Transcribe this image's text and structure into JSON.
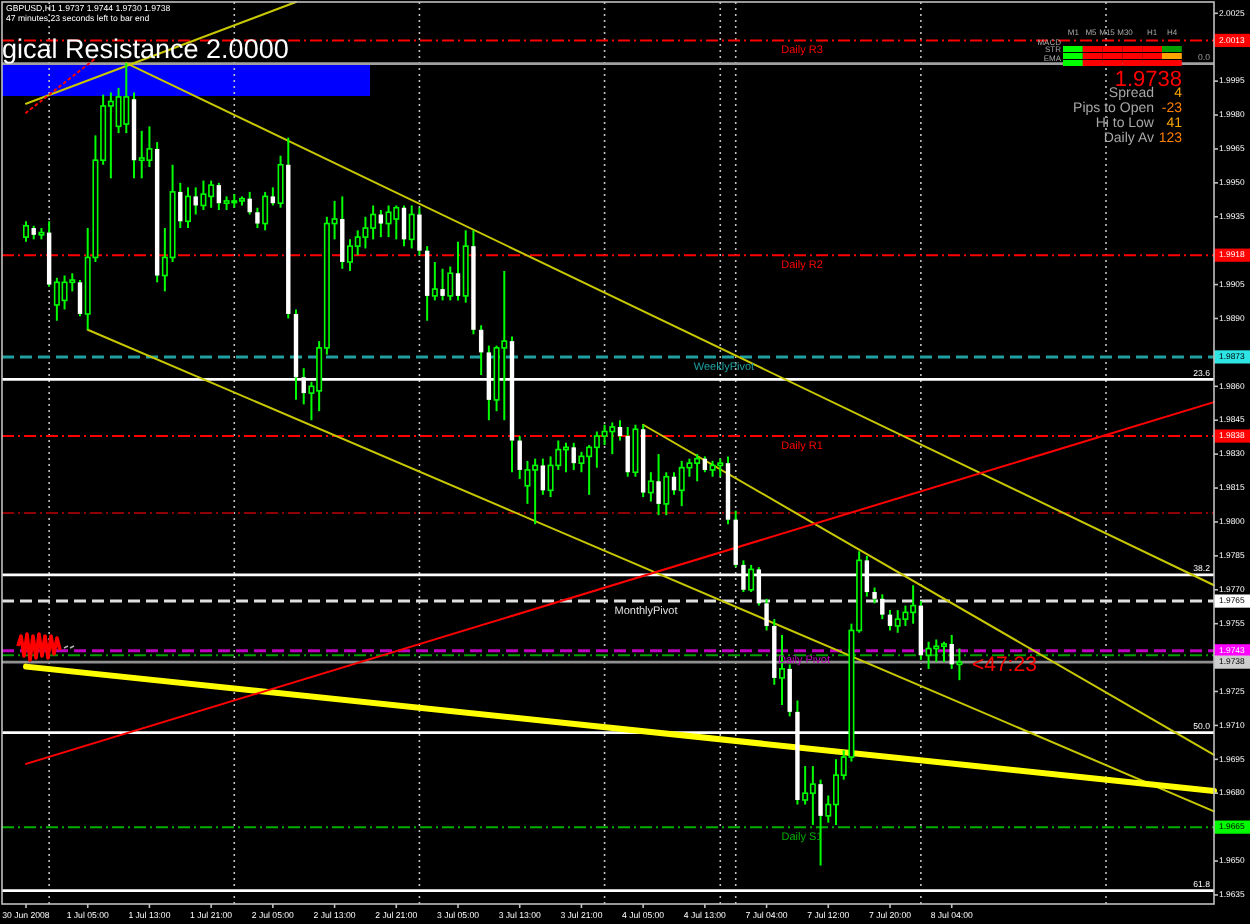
{
  "chart_data": {
    "type": "candlestick",
    "title": "GBPUSD,H1 1.9737 1.9744 1.9730 1.9738",
    "subtitle": "47 minutes 23 seconds left to bar end",
    "color": "#00ff00",
    "categories": [
      "30 Jun 2008",
      null,
      null,
      null,
      null,
      null,
      null,
      null,
      "1 Jul 05:00",
      null,
      null,
      null,
      null,
      null,
      null,
      null,
      "1 Jul 13:00",
      null,
      null,
      null,
      null,
      null,
      null,
      null,
      "1 Jul 21:00",
      null,
      null,
      null,
      null,
      null,
      null,
      null,
      "2 Jul 05:00",
      null,
      null,
      null,
      null,
      null,
      null,
      null,
      "2 Jul 13:00",
      null,
      null,
      null,
      null,
      null,
      null,
      null,
      "2 Jul 21:00",
      null,
      null,
      null,
      null,
      null,
      null,
      null,
      "3 Jul 05:00",
      null,
      null,
      null,
      null,
      null,
      null,
      null,
      "3 Jul 13:00",
      null,
      null,
      null,
      null,
      null,
      null,
      null,
      "3 Jul 21:00",
      null,
      null,
      null,
      null,
      null,
      null,
      null,
      "4 Jul 05:00",
      null,
      null,
      null,
      null,
      null,
      null,
      null,
      "4 Jul 13:00",
      null,
      null,
      null,
      null,
      null,
      null,
      null,
      "7 Jul 04:00",
      null,
      null,
      null,
      null,
      null,
      null,
      null,
      "7 Jul 12:00",
      null,
      null,
      null,
      null,
      null,
      null,
      null,
      "7 Jul 20:00",
      null,
      null,
      null,
      null,
      null,
      null,
      null,
      "8 Jul 04:00",
      null,
      null,
      null,
      null,
      null,
      null,
      null,
      null,
      null,
      null,
      null,
      null,
      null,
      null,
      null,
      null,
      null,
      null,
      null,
      null,
      null,
      null,
      null,
      null,
      null,
      null,
      null,
      null,
      null,
      null,
      null,
      null,
      null,
      null
    ],
    "ohlc": [
      [
        1.9926,
        1.9933,
        1.9924,
        1.9931
      ],
      [
        1.993,
        1.9931,
        1.9925,
        1.9927
      ],
      [
        1.9927,
        1.993,
        1.9925,
        1.9928
      ],
      [
        1.9928,
        1.9933,
        1.9904,
        1.9905
      ],
      [
        1.9896,
        1.9908,
        1.9889,
        1.9906
      ],
      [
        1.9898,
        1.9909,
        1.9894,
        1.9906
      ],
      [
        1.9906,
        1.991,
        1.9902,
        1.9907
      ],
      [
        1.9906,
        1.9907,
        1.9891,
        1.9892
      ],
      [
        1.9892,
        1.993,
        1.9885,
        1.9917
      ],
      [
        1.9917,
        1.9971,
        1.9915,
        1.996
      ],
      [
        1.996,
        1.9989,
        1.9958,
        1.9984
      ],
      [
        1.9984,
        1.999,
        1.9952,
        1.9986
      ],
      [
        1.9975,
        1.9992,
        1.9972,
        1.9988
      ],
      [
        1.9976,
        2.0003,
        1.9972,
        1.9988
      ],
      [
        1.9987,
        1.999,
        1.9952,
        1.996
      ],
      [
        1.996,
        1.9973,
        1.9952,
        1.9961
      ],
      [
        1.996,
        1.9975,
        1.9957,
        1.9965
      ],
      [
        1.9965,
        1.9968,
        1.9906,
        1.9909
      ],
      [
        1.9909,
        1.993,
        1.9902,
        1.9917
      ],
      [
        1.9917,
        1.9958,
        1.9915,
        1.9946
      ],
      [
        1.9946,
        1.995,
        1.993,
        1.9933
      ],
      [
        1.9933,
        1.9948,
        1.993,
        1.9944
      ],
      [
        1.9944,
        1.9948,
        1.9936,
        1.994
      ],
      [
        1.994,
        1.9951,
        1.9938,
        1.9945
      ],
      [
        1.9944,
        1.9951,
        1.9939,
        1.9949
      ],
      [
        1.9949,
        1.995,
        1.9938,
        1.9941
      ],
      [
        1.9941,
        1.9944,
        1.9938,
        1.9942
      ],
      [
        1.9942,
        1.9945,
        1.9939,
        1.9942
      ],
      [
        1.9942,
        1.9944,
        1.994,
        1.9943
      ],
      [
        1.9943,
        1.9946,
        1.9936,
        1.9937
      ],
      [
        1.9937,
        1.9939,
        1.993,
        1.9932
      ],
      [
        1.9932,
        1.9946,
        1.9929,
        1.9944
      ],
      [
        1.9944,
        1.9948,
        1.994,
        1.9941
      ],
      [
        1.9941,
        1.9962,
        1.9939,
        1.9958
      ],
      [
        1.9958,
        1.997,
        1.989,
        1.9892
      ],
      [
        1.9892,
        1.9894,
        1.9854,
        1.9864
      ],
      [
        1.9864,
        1.9868,
        1.9852,
        1.9857
      ],
      [
        1.9857,
        1.9862,
        1.9845,
        1.986
      ],
      [
        1.9858,
        1.988,
        1.9849,
        1.9877
      ],
      [
        1.9877,
        1.9935,
        1.9874,
        1.9932
      ],
      [
        1.9932,
        1.9942,
        1.9925,
        1.9934
      ],
      [
        1.9934,
        1.9944,
        1.9912,
        1.9915
      ],
      [
        1.9915,
        1.9925,
        1.9911,
        1.9922
      ],
      [
        1.9922,
        1.9929,
        1.9918,
        1.9926
      ],
      [
        1.9926,
        1.9935,
        1.9921,
        1.993
      ],
      [
        1.993,
        1.994,
        1.9925,
        1.9936
      ],
      [
        1.9936,
        1.9938,
        1.9926,
        1.9932
      ],
      [
        1.9932,
        1.994,
        1.9926,
        1.9937
      ],
      [
        1.9934,
        1.994,
        1.9925,
        1.9939
      ],
      [
        1.9939,
        1.994,
        1.9922,
        1.9925
      ],
      [
        1.9925,
        1.994,
        1.9921,
        1.9936
      ],
      [
        1.9936,
        1.9939,
        1.9918,
        1.992
      ],
      [
        1.992,
        1.9922,
        1.9889,
        1.99
      ],
      [
        1.99,
        1.9915,
        1.9898,
        1.9903
      ],
      [
        1.9903,
        1.9912,
        1.9898,
        1.99
      ],
      [
        1.99,
        1.9913,
        1.9898,
        1.991
      ],
      [
        1.991,
        1.9924,
        1.9898,
        1.99
      ],
      [
        1.99,
        1.9929,
        1.9897,
        1.9922
      ],
      [
        1.9922,
        1.9929,
        1.9883,
        1.9885
      ],
      [
        1.9885,
        1.9887,
        1.9865,
        1.9875
      ],
      [
        1.9875,
        1.9878,
        1.9845,
        1.9854
      ],
      [
        1.9854,
        1.9878,
        1.9849,
        1.9877
      ],
      [
        1.9877,
        1.9911,
        1.9845,
        1.988
      ],
      [
        1.988,
        1.9882,
        1.9822,
        1.9836
      ],
      [
        1.9836,
        1.9838,
        1.9819,
        1.9823
      ],
      [
        1.9816,
        1.9827,
        1.9808,
        1.9823
      ],
      [
        1.9823,
        1.9828,
        1.9799,
        1.9825
      ],
      [
        1.9825,
        1.9828,
        1.9812,
        1.9814
      ],
      [
        1.9814,
        1.9829,
        1.9811,
        1.9825
      ],
      [
        1.9825,
        1.9836,
        1.9823,
        1.9832
      ],
      [
        1.9832,
        1.9835,
        1.9822,
        1.9833
      ],
      [
        1.9833,
        1.9835,
        1.9823,
        1.9826
      ],
      [
        1.9826,
        1.9831,
        1.9822,
        1.9829
      ],
      [
        1.9829,
        1.9834,
        1.9812,
        1.9833
      ],
      [
        1.9833,
        1.984,
        1.9824,
        1.9838
      ],
      [
        1.9838,
        1.9843,
        1.9834,
        1.984
      ],
      [
        1.984,
        1.9844,
        1.983,
        1.9842
      ],
      [
        1.9842,
        1.9845,
        1.9836,
        1.9838
      ],
      [
        1.9838,
        1.9842,
        1.982,
        1.9822
      ],
      [
        1.9822,
        1.9843,
        1.982,
        1.9841
      ],
      [
        1.9841,
        1.9843,
        1.9811,
        1.9813
      ],
      [
        1.9813,
        1.9822,
        1.9809,
        1.9818
      ],
      [
        1.9818,
        1.983,
        1.9803,
        1.9808
      ],
      [
        1.9808,
        1.9822,
        1.9803,
        1.982
      ],
      [
        1.982,
        1.9822,
        1.9812,
        1.9814
      ],
      [
        1.9814,
        1.9827,
        1.9807,
        1.9824
      ],
      [
        1.9824,
        1.9828,
        1.982,
        1.9826
      ],
      [
        1.9826,
        1.983,
        1.9818,
        1.9828
      ],
      [
        1.9828,
        1.9829,
        1.9822,
        1.9823
      ],
      [
        1.9823,
        1.9827,
        1.982,
        1.9825
      ],
      [
        1.9825,
        1.9828,
        1.982,
        1.9826
      ],
      [
        1.9826,
        1.9829,
        1.9799,
        1.9801
      ],
      [
        1.9801,
        1.9805,
        1.978,
        1.9781
      ],
      [
        1.9781,
        1.9783,
        1.9769,
        1.977
      ],
      [
        1.977,
        1.9781,
        1.9769,
        1.9779
      ],
      [
        1.9779,
        1.978,
        1.9763,
        1.9764
      ],
      [
        1.9764,
        1.9766,
        1.9752,
        1.9754
      ],
      [
        1.9754,
        1.9757,
        1.9728,
        1.9731
      ],
      [
        1.9731,
        1.975,
        1.9719,
        1.9735
      ],
      [
        1.9735,
        1.9737,
        1.9714,
        1.9716
      ],
      [
        1.9716,
        1.9721,
        1.9675,
        1.9677
      ],
      [
        1.9677,
        1.9692,
        1.9675,
        1.968
      ],
      [
        1.968,
        1.9692,
        1.9666,
        1.9684
      ],
      [
        1.9684,
        1.9686,
        1.9648,
        1.967
      ],
      [
        1.967,
        1.9679,
        1.9667,
        1.9675
      ],
      [
        1.9675,
        1.9695,
        1.9666,
        1.9688
      ],
      [
        1.9688,
        1.9699,
        1.9686,
        1.9696
      ],
      [
        1.9696,
        1.9755,
        1.9694,
        1.9752
      ],
      [
        1.9752,
        1.9787,
        1.9751,
        1.9783
      ],
      [
        1.9783,
        1.9785,
        1.9767,
        1.9769
      ],
      [
        1.9769,
        1.9771,
        1.9764,
        1.9766
      ],
      [
        1.9766,
        1.9768,
        1.9757,
        1.9759
      ],
      [
        1.9759,
        1.9761,
        1.9752,
        1.9754
      ],
      [
        1.9754,
        1.9761,
        1.9751,
        1.9757
      ],
      [
        1.9757,
        1.9763,
        1.9754,
        1.976
      ],
      [
        1.976,
        1.9772,
        1.9755,
        1.9763
      ],
      [
        1.9763,
        1.9765,
        1.9739,
        1.9741
      ],
      [
        1.9741,
        1.9747,
        1.9735,
        1.9744
      ],
      [
        1.9744,
        1.9748,
        1.9738,
        1.9745
      ],
      [
        1.9745,
        1.9747,
        1.9738,
        1.9746
      ],
      [
        1.9746,
        1.975,
        1.9735,
        1.9737
      ],
      [
        1.9737,
        1.9744,
        1.973,
        1.9738
      ],
      null,
      null,
      null,
      null,
      null,
      null,
      null,
      null,
      null,
      null,
      null,
      null,
      null,
      null,
      null,
      null,
      null,
      null,
      null,
      null,
      null,
      null,
      null,
      null,
      null,
      null,
      null,
      null,
      null,
      null,
      null,
      null,
      null
    ],
    "colors": [
      "#00ff00",
      "#ffffff",
      "#00ff00",
      "#ffffff",
      "#00ff00",
      "#00ff00",
      "#00ff00",
      "#ffffff",
      "#00ff00",
      "#00ff00",
      "#00ff00",
      "#00ff00",
      "#00ff00",
      "#00ff00",
      "#ffffff",
      "#00ff00",
      "#00ff00",
      "#ffffff",
      "#00ff00",
      "#00ff00",
      "#ffffff",
      "#00ff00",
      "#ffffff",
      "#00ff00",
      "#00ff00",
      "#ffffff",
      "#00ff00",
      "#00ff00",
      "#00ff00",
      "#ffffff",
      "#ffffff",
      "#00ff00",
      "#ffffff",
      "#00ff00",
      "#ffffff",
      "#ffffff",
      "#ffffff",
      "#00ff00",
      "#00ff00",
      "#00ff00",
      "#00ff00",
      "#ffffff",
      "#00ff00",
      "#00ff00",
      "#00ff00",
      "#00ff00",
      "#ffffff",
      "#00ff00",
      "#00ff00",
      "#ffffff",
      "#00ff00",
      "#ffffff",
      "#ffffff",
      "#00ff00",
      "#ffffff",
      "#00ff00",
      "#ffffff",
      "#00ff00",
      "#ffffff",
      "#ffffff",
      "#ffffff",
      "#00ff00",
      "#00ff00",
      "#ffffff",
      "#ffffff",
      "#00ff00",
      "#00ff00",
      "#ffffff",
      "#00ff00",
      "#00ff00",
      "#00ff00",
      "#ffffff",
      "#00ff00",
      "#00ff00",
      "#00ff00",
      "#00ff00",
      "#00ff00",
      "#ffffff",
      "#ffffff",
      "#00ff00",
      "#ffffff",
      "#00ff00",
      "#ffffff",
      "#00ff00",
      "#ffffff",
      "#00ff00",
      "#00ff00",
      "#00ff00",
      "#ffffff",
      "#00ff00",
      "#00ff00",
      "#ffffff",
      "#ffffff",
      "#ffffff",
      "#00ff00",
      "#ffffff",
      "#ffffff",
      "#ffffff",
      "#00ff00",
      "#ffffff",
      "#ffffff",
      "#00ff00",
      "#00ff00",
      "#ffffff",
      "#00ff00",
      "#00ff00",
      "#00ff00",
      "#00ff00",
      "#00ff00",
      "#ffffff",
      "#ffffff",
      "#ffffff",
      "#ffffff",
      "#00ff00",
      "#00ff00",
      "#00ff00",
      "#ffffff",
      "#00ff00",
      "#00ff00",
      "#00ff00",
      "#ffffff",
      "#00ff00",
      null,
      null,
      null,
      null,
      null,
      null,
      null,
      null,
      null,
      null,
      null,
      null,
      null,
      null,
      null,
      null,
      null,
      null,
      null,
      null,
      null,
      null,
      null,
      null,
      null,
      null,
      null,
      null,
      null,
      null,
      null,
      null,
      null
    ],
    "series": [
      {
        "type": "line",
        "color": "#c8c800",
        "values": [
          null,
          null,
          null,
          null,
          null,
          null,
          null,
          null,
          null,
          null,
          null,
          null,
          null,
          2.0003,
          null,
          null,
          null,
          null,
          null,
          null,
          null,
          null,
          null,
          null,
          null,
          null,
          null,
          null,
          null,
          null,
          null,
          null,
          null,
          null,
          null,
          null,
          null,
          null,
          null,
          null,
          null,
          null,
          null,
          null,
          null,
          null,
          null,
          null,
          null,
          null,
          null,
          null,
          null,
          null,
          null,
          null,
          null,
          null,
          null,
          null,
          null,
          null,
          null,
          null,
          null,
          null,
          null,
          null,
          null,
          null,
          null,
          null,
          null,
          null,
          null,
          null,
          null,
          null,
          null,
          null,
          null,
          null,
          null,
          null,
          null,
          null,
          null,
          null,
          null,
          null,
          null,
          null,
          null,
          null,
          null,
          null,
          null,
          null,
          null,
          null,
          null,
          null,
          null,
          null,
          null,
          null,
          null,
          null,
          null,
          null,
          null,
          null,
          null,
          null,
          null,
          null,
          null,
          null,
          null,
          null,
          null,
          null,
          null,
          null,
          null,
          null,
          null,
          null,
          null,
          null,
          null,
          null,
          null,
          null,
          null,
          null,
          null,
          null,
          null,
          null,
          null,
          null,
          null,
          null,
          null,
          null,
          null,
          null,
          null,
          null,
          null,
          null,
          null,
          null,
          1.9772
        ]
      },
      {
        "type": "line",
        "color": "#c8c800",
        "values": [
          null,
          null,
          null,
          null,
          null,
          null,
          null,
          null,
          1.9885,
          null,
          null,
          null,
          null,
          null,
          null,
          null,
          null,
          null,
          null,
          null,
          null,
          null,
          null,
          null,
          null,
          null,
          null,
          null,
          null,
          null,
          null,
          null,
          null,
          null,
          null,
          null,
          null,
          null,
          null,
          null,
          null,
          null,
          null,
          null,
          null,
          null,
          null,
          null,
          null,
          null,
          null,
          null,
          null,
          null,
          null,
          null,
          null,
          null,
          null,
          null,
          null,
          null,
          null,
          null,
          null,
          null,
          null,
          null,
          null,
          null,
          null,
          null,
          null,
          null,
          null,
          null,
          null,
          null,
          null,
          null,
          null,
          null,
          null,
          null,
          null,
          null,
          null,
          null,
          null,
          null,
          null,
          null,
          null,
          null,
          null,
          null,
          null,
          null,
          null,
          null,
          null,
          null,
          null,
          null,
          null,
          null,
          null,
          null,
          null,
          null,
          null,
          null,
          null,
          null,
          null,
          null,
          null,
          null,
          null,
          null,
          null,
          null,
          null,
          null,
          null,
          null,
          null,
          null,
          null,
          null,
          null,
          null,
          null,
          null,
          null,
          null,
          null,
          null,
          null,
          null,
          null,
          null,
          null,
          null,
          null,
          null,
          null,
          null,
          null,
          null,
          null,
          null,
          null,
          null,
          1.9672
        ]
      },
      {
        "type": "line",
        "color": "#c8c800",
        "values": [
          null,
          null,
          null,
          null,
          null,
          null,
          null,
          null,
          null,
          null,
          null,
          null,
          null,
          null,
          null,
          null,
          null,
          null,
          null,
          null,
          null,
          null,
          null,
          null,
          null,
          null,
          null,
          null,
          null,
          null,
          null,
          null,
          null,
          null,
          null,
          null,
          null,
          null,
          null,
          null,
          null,
          null,
          null,
          null,
          null,
          null,
          null,
          null,
          null,
          null,
          null,
          null,
          null,
          null,
          null,
          null,
          null,
          null,
          null,
          null,
          null,
          null,
          null,
          null,
          null,
          null,
          null,
          null,
          null,
          null,
          null,
          null,
          null,
          null,
          null,
          null,
          null,
          null,
          null,
          null,
          1.9843,
          null,
          null,
          null,
          null,
          null,
          null,
          null,
          null,
          null,
          null,
          null,
          null,
          null,
          null,
          null,
          null,
          null,
          null,
          null,
          null,
          null,
          null,
          null,
          null,
          null,
          null,
          null,
          null,
          null,
          null,
          null,
          null,
          null,
          null,
          null,
          null,
          null,
          null,
          null,
          null,
          null,
          null,
          null,
          null,
          null,
          null,
          null,
          null,
          null,
          null,
          null,
          null,
          null,
          null,
          null,
          null,
          null,
          null,
          null,
          null,
          null,
          null,
          null,
          null,
          null,
          null,
          null,
          null,
          null,
          null,
          null,
          null,
          null,
          1.9697
        ]
      },
      {
        "type": "line",
        "color": "#ffff00",
        "values": [
          1.9736,
          null,
          null,
          null,
          null,
          null,
          null,
          null,
          null,
          null,
          null,
          null,
          null,
          null,
          null,
          null,
          null,
          null,
          null,
          null,
          null,
          null,
          null,
          null,
          null,
          null,
          null,
          null,
          null,
          null,
          null,
          null,
          null,
          null,
          null,
          null,
          null,
          null,
          null,
          null,
          null,
          null,
          null,
          null,
          null,
          null,
          null,
          null,
          null,
          null,
          null,
          null,
          null,
          null,
          null,
          null,
          null,
          null,
          null,
          null,
          null,
          null,
          null,
          null,
          null,
          null,
          null,
          null,
          null,
          null,
          null,
          null,
          null,
          null,
          null,
          null,
          null,
          null,
          null,
          null,
          null,
          null,
          null,
          null,
          null,
          null,
          null,
          null,
          null,
          null,
          null,
          null,
          null,
          null,
          null,
          null,
          null,
          null,
          null,
          null,
          null,
          null,
          null,
          null,
          null,
          null,
          null,
          null,
          null,
          null,
          null,
          null,
          null,
          null,
          null,
          null,
          null,
          null,
          null,
          null,
          null,
          null,
          null,
          null,
          null,
          null,
          null,
          null,
          null,
          null,
          null,
          null,
          null,
          null,
          null,
          null,
          null,
          null,
          null,
          null,
          null,
          null,
          null,
          null,
          null,
          null,
          null,
          null,
          null,
          null,
          null,
          null,
          null,
          null,
          1.9681
        ]
      },
      {
        "type": "line",
        "color": "#ff0000",
        "values": [
          1.9693,
          null,
          null,
          null,
          null,
          null,
          null,
          null,
          null,
          null,
          null,
          null,
          null,
          null,
          null,
          null,
          null,
          null,
          null,
          null,
          null,
          null,
          null,
          null,
          null,
          null,
          null,
          null,
          null,
          null,
          null,
          null,
          null,
          null,
          null,
          null,
          null,
          null,
          null,
          null,
          null,
          null,
          null,
          null,
          null,
          null,
          null,
          null,
          null,
          null,
          null,
          null,
          null,
          null,
          null,
          null,
          null,
          null,
          null,
          null,
          null,
          null,
          null,
          null,
          null,
          null,
          null,
          null,
          null,
          null,
          null,
          null,
          null,
          null,
          null,
          null,
          null,
          null,
          null,
          null,
          null,
          null,
          null,
          null,
          null,
          null,
          null,
          null,
          null,
          null,
          null,
          null,
          null,
          null,
          null,
          null,
          null,
          null,
          null,
          null,
          null,
          null,
          null,
          null,
          null,
          null,
          null,
          null,
          null,
          null,
          null,
          null,
          null,
          null,
          null,
          null,
          null,
          null,
          null,
          null,
          null,
          null,
          null,
          null,
          null,
          null,
          null,
          null,
          null,
          null,
          null,
          null,
          null,
          null,
          null,
          null,
          null,
          null,
          null,
          null,
          null,
          null,
          null,
          null,
          null,
          null,
          null,
          null,
          null,
          null,
          null,
          null,
          null,
          null,
          1.9853
        ]
      },
      {
        "type": "line",
        "color": "#c8c800",
        "values": [
          1.9985,
          null,
          null,
          null,
          null,
          null,
          null,
          null,
          null,
          null,
          null,
          null,
          null,
          null,
          null,
          null,
          null,
          null,
          null,
          null,
          null,
          null,
          null,
          null,
          null,
          null,
          null,
          null,
          null,
          null,
          null,
          null,
          null,
          null,
          null,
          2.003,
          null,
          null,
          null,
          null,
          null,
          null,
          null,
          null,
          null,
          null,
          null,
          null,
          null,
          null,
          null,
          null,
          null,
          null,
          null,
          null,
          null,
          null,
          null,
          null,
          null,
          null,
          null,
          null,
          null,
          null,
          null,
          null,
          null,
          null,
          null,
          null,
          null,
          null,
          null,
          null,
          null,
          null,
          null,
          null,
          null,
          null,
          null,
          null,
          null,
          null,
          null,
          null,
          null,
          null,
          null,
          null,
          null,
          null,
          null,
          null,
          null,
          null,
          null,
          null,
          null,
          null,
          null,
          null,
          null,
          null,
          null,
          null,
          null,
          null,
          null,
          null,
          null,
          null,
          null,
          null,
          null,
          null,
          null,
          null,
          null,
          null,
          null,
          null,
          null,
          null,
          null,
          null,
          null,
          null,
          null,
          null,
          null,
          null,
          null,
          null,
          null,
          null,
          null,
          null,
          null,
          null,
          null,
          null,
          null,
          null,
          null,
          null,
          null,
          null,
          null,
          null,
          null,
          null,
          null
        ]
      },
      {
        "type": "line",
        "color": "#ff0000",
        "line_style": "dotted",
        "values": [
          1.9981,
          null,
          null,
          null,
          null,
          null,
          null,
          null,
          null,
          2.0005,
          null,
          null,
          null,
          null,
          null,
          null,
          null,
          null,
          null,
          null,
          null,
          null,
          null,
          null,
          null,
          null,
          null,
          null,
          null,
          null,
          null,
          null,
          null,
          null,
          null,
          null,
          null,
          null,
          null,
          null,
          null,
          null,
          null,
          null,
          null,
          null,
          null,
          null,
          null,
          null,
          null,
          null,
          null,
          null,
          null,
          null,
          null,
          null,
          null,
          null,
          null,
          null,
          null,
          null,
          null,
          null,
          null,
          null,
          null,
          null,
          null,
          null,
          null,
          null,
          null,
          null,
          null,
          null,
          null,
          null,
          null,
          null,
          null,
          null,
          null,
          null,
          null,
          null,
          null,
          null,
          null,
          null,
          null,
          null,
          null,
          null,
          null,
          null,
          null,
          null,
          null,
          null,
          null,
          null,
          null,
          null,
          null,
          null,
          null,
          null,
          null,
          null,
          null,
          null,
          null,
          null,
          null,
          null,
          null,
          null,
          null,
          null,
          null,
          null,
          null,
          null,
          null,
          null,
          null,
          null,
          null,
          null,
          null,
          null,
          null,
          null,
          null,
          null,
          null,
          null,
          null,
          null,
          null,
          null,
          null,
          null,
          null,
          null,
          null,
          null,
          null,
          null,
          null,
          null,
          null
        ]
      }
    ],
    "ylim": [
      1.9631,
      2.003
    ],
    "yticks": [
      {
        "value": 2.0025,
        "label": "2.0025"
      },
      {
        "value": 1.9995,
        "label": "1.9995"
      },
      {
        "value": 1.998,
        "label": "1.9980"
      },
      {
        "value": 1.9965,
        "label": "1.9965"
      },
      {
        "value": 1.995,
        "label": "1.9950"
      },
      {
        "value": 1.9935,
        "label": "1.9935"
      },
      {
        "value": 1.9905,
        "label": "1.9905"
      },
      {
        "value": 1.989,
        "label": "1.9890"
      },
      {
        "value": 1.986,
        "label": "1.9860"
      },
      {
        "value": 1.9845,
        "label": "1.9845"
      },
      {
        "value": 1.983,
        "label": "1.9830"
      },
      {
        "value": 1.9815,
        "label": "1.9815"
      },
      {
        "value": 1.98,
        "label": "1.9800"
      },
      {
        "value": 1.9785,
        "label": "1.9785"
      },
      {
        "value": 1.977,
        "label": "1.9770"
      },
      {
        "value": 1.9755,
        "label": "1.9755"
      },
      {
        "value": 1.9725,
        "label": "1.9725"
      },
      {
        "value": 1.971,
        "label": "1.9710"
      },
      {
        "value": 1.9695,
        "label": "1.9695"
      },
      {
        "value": 1.968,
        "label": "1.9680"
      },
      {
        "value": 1.965,
        "label": "1.9650"
      },
      {
        "value": 1.9635,
        "label": "1.9635"
      }
    ],
    "y2lim": [
      62.8,
      -4.6
    ],
    "ref_lines": [
      {
        "axis": "y2",
        "value": 0,
        "label": "0.0",
        "color": "#a0a0a0",
        "line_style": "solid"
      },
      {
        "axis": "y2",
        "value": 23.6,
        "label": "23.6",
        "color": "#ffffff",
        "line_style": "solid"
      },
      {
        "axis": "y2",
        "value": 38.2,
        "label": "38.2",
        "color": "#ffffff",
        "line_style": "solid"
      },
      {
        "axis": "y2",
        "value": 50,
        "label": "50.0",
        "color": "#ffffff",
        "line_style": "solid"
      },
      {
        "axis": "y2",
        "value": 61.8,
        "label": "61.8",
        "color": "#ffffff",
        "line_style": "solid"
      },
      {
        "axis": "y",
        "value": 2.0013,
        "label": "Daily R3",
        "color": "#ff0000",
        "line_style": "dashdot"
      },
      {
        "axis": "y",
        "value": 1.9918,
        "label": "Daily R2",
        "color": "#ff0000",
        "line_style": "dashdot"
      },
      {
        "axis": "y",
        "value": 1.9873,
        "label": "WeeklyPivot",
        "color": "#20a0a0",
        "line_style": "dashed"
      },
      {
        "axis": "y",
        "value": 1.9838,
        "label": "Daily R1",
        "color": "#ff0000",
        "line_style": "dashdot"
      },
      {
        "axis": "y",
        "value": 1.9804,
        "color": "#900000",
        "line_style": "dashdot"
      },
      {
        "axis": "y",
        "value": 1.9765,
        "label": "MonthlyPivot",
        "color": "#e0e0e0",
        "line_style": "dashed"
      },
      {
        "axis": "y",
        "value": 1.9743,
        "label": "Daily Pivot",
        "color": "#c000c0",
        "line_style": "dashed"
      },
      {
        "axis": "y",
        "value": 1.9741,
        "color": "#00a000",
        "line_style": "dashdot"
      },
      {
        "axis": "y",
        "value": 1.9738,
        "color": "#909090",
        "line_style": "solid"
      },
      {
        "axis": "y",
        "value": 1.9665,
        "label": "Daily S1",
        "color": "#00b000",
        "line_style": "dashdot"
      }
    ],
    "annotations": [
      "gical Resistance 2.0000",
      {
        "text": "2.0013",
        "y": 2.0013
      },
      {
        "text": "1.9918",
        "y": 1.9918
      },
      {
        "text": "1.9873",
        "y": 1.9873
      },
      {
        "text": "1.9838",
        "y": 1.9838
      },
      {
        "text": "1.9765",
        "y": 1.9765
      },
      {
        "text": "1.9743",
        "y": 1.9743
      },
      {
        "text": "1.9738",
        "y": 1.9738
      },
      {
        "text": "1.9665",
        "y": 1.9665
      },
      "<47:23",
      "1.9738",
      "Spread",
      "4",
      "Pips to Open",
      "-23",
      "Hi to Low",
      "41",
      "Daily Av",
      "123",
      "M1",
      "M5",
      "M15",
      "M30",
      "H1",
      "H4",
      "MACD",
      "STR",
      "EMA"
    ]
  }
}
